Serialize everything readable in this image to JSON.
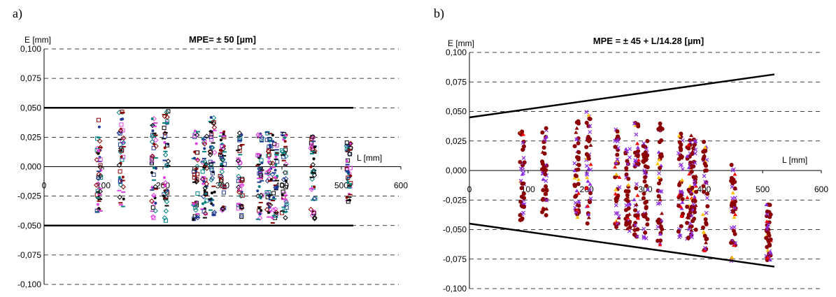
{
  "panels": [
    {
      "label": "a)"
    },
    {
      "label": "b)"
    }
  ],
  "colors": {
    "limit_line": "#000000",
    "grid": "#000000",
    "a_series": [
      "#1f3a93",
      "#e040e0",
      "#008080",
      "#8b0000",
      "#000000"
    ],
    "b_series": [
      "#8b0000",
      "#8b2be2",
      "#ffc000",
      "#ff0000"
    ]
  },
  "chart_data": [
    {
      "type": "scatter",
      "title": "MPE= ± 50  [µm]",
      "xlabel": "L [mm]",
      "ylabel": "E [mm]",
      "xlim": [
        0,
        600
      ],
      "ylim": [
        -0.1,
        0.1
      ],
      "x_ticks": [
        "0",
        "100",
        "200",
        "300",
        "400",
        "500",
        "600"
      ],
      "y_ticks": [
        "0,100",
        "0,075",
        "0,050",
        "0,025",
        "0,000",
        "-0,025",
        "-0,050",
        "-0,075",
        "-0,100"
      ],
      "grid": "horizontal dashed",
      "limit_lines": [
        {
          "x": [
            0,
            520
          ],
          "y": [
            0.05,
            0.05
          ]
        },
        {
          "x": [
            0,
            520
          ],
          "y": [
            -0.05,
            -0.05
          ]
        }
      ],
      "point_groups": [
        {
          "x": 92,
          "ymin": -0.046,
          "ymax": 0.042
        },
        {
          "x": 130,
          "ymin": -0.036,
          "ymax": 0.048
        },
        {
          "x": 185,
          "ymin": -0.044,
          "ymax": 0.044
        },
        {
          "x": 205,
          "ymin": -0.046,
          "ymax": 0.048
        },
        {
          "x": 255,
          "ymin": -0.046,
          "ymax": 0.032
        },
        {
          "x": 270,
          "ymin": -0.044,
          "ymax": 0.028
        },
        {
          "x": 283,
          "ymin": -0.044,
          "ymax": 0.045
        },
        {
          "x": 300,
          "ymin": -0.044,
          "ymax": 0.03
        },
        {
          "x": 330,
          "ymin": -0.046,
          "ymax": 0.032
        },
        {
          "x": 363,
          "ymin": -0.046,
          "ymax": 0.03
        },
        {
          "x": 378,
          "ymin": -0.044,
          "ymax": 0.03
        },
        {
          "x": 388,
          "ymin": -0.048,
          "ymax": 0.03
        },
        {
          "x": 404,
          "ymin": -0.044,
          "ymax": 0.03
        },
        {
          "x": 452,
          "ymin": -0.046,
          "ymax": 0.027
        },
        {
          "x": 512,
          "ymin": -0.03,
          "ymax": 0.022
        }
      ]
    },
    {
      "type": "scatter",
      "title": "MPE = ± 45 + L/14.28 [µm]",
      "xlabel": "L [mm]",
      "ylabel": "E [mm]",
      "xlim": [
        0,
        600
      ],
      "ylim": [
        -0.1,
        0.1
      ],
      "x_ticks": [
        "0",
        "100",
        "200",
        "300",
        "400",
        "500",
        "600"
      ],
      "y_ticks": [
        "0,100",
        "0,075",
        "0,050",
        "0,025",
        "0,000",
        "-0,025",
        "-0,050",
        "-0,075",
        "-0,100"
      ],
      "grid": "horizontal dashed",
      "limit_lines": [
        {
          "x": [
            0,
            520
          ],
          "y": [
            0.045,
            0.0814
          ]
        },
        {
          "x": [
            0,
            520
          ],
          "y": [
            -0.045,
            -0.0814
          ]
        }
      ],
      "point_groups": [
        {
          "x": 90,
          "ymin": -0.043,
          "ymax": 0.035
        },
        {
          "x": 128,
          "ymin": -0.04,
          "ymax": 0.04
        },
        {
          "x": 183,
          "ymin": -0.04,
          "ymax": 0.045
        },
        {
          "x": 203,
          "ymin": -0.045,
          "ymax": 0.05
        },
        {
          "x": 252,
          "ymin": -0.05,
          "ymax": 0.035
        },
        {
          "x": 270,
          "ymin": -0.055,
          "ymax": 0.02
        },
        {
          "x": 285,
          "ymin": -0.057,
          "ymax": 0.047
        },
        {
          "x": 300,
          "ymin": -0.058,
          "ymax": 0.025
        },
        {
          "x": 325,
          "ymin": -0.063,
          "ymax": 0.04
        },
        {
          "x": 360,
          "ymin": -0.06,
          "ymax": 0.035
        },
        {
          "x": 375,
          "ymin": -0.06,
          "ymax": 0.033
        },
        {
          "x": 383,
          "ymin": -0.058,
          "ymax": 0.028
        },
        {
          "x": 402,
          "ymin": -0.07,
          "ymax": 0.03
        },
        {
          "x": 450,
          "ymin": -0.077,
          "ymax": 0.006
        },
        {
          "x": 510,
          "ymin": -0.076,
          "ymax": -0.028
        }
      ]
    }
  ]
}
